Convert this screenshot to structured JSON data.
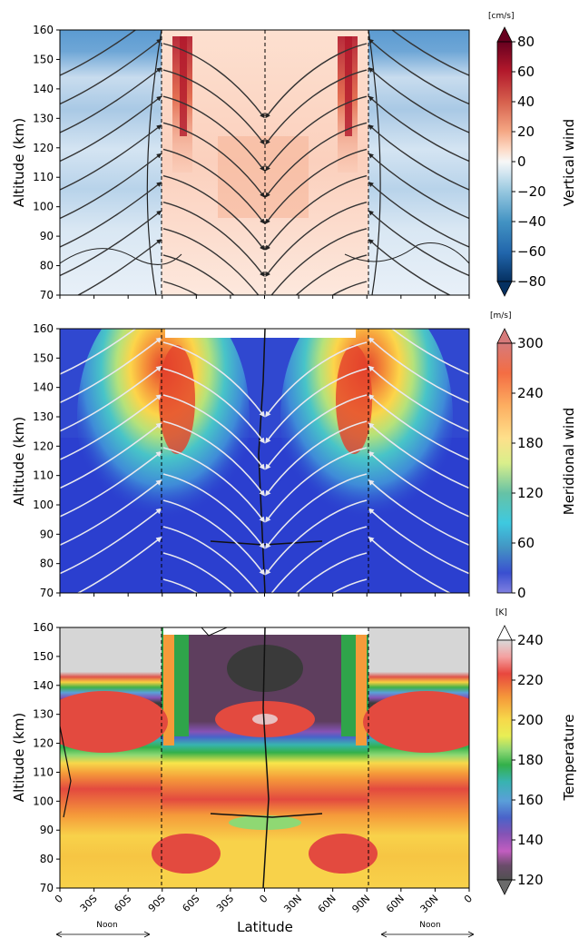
{
  "chart_data": [
    {
      "type": "heatmap",
      "panel": "top",
      "ylabel": "Altitude (km)",
      "ylim": [
        70,
        160
      ],
      "yticks": [
        70,
        80,
        90,
        100,
        110,
        120,
        130,
        140,
        150,
        160
      ],
      "colorbar": {
        "label": "Vertical wind",
        "unit": "[cm/s]",
        "ticks": [
          "80",
          "60",
          "40",
          "20",
          "0",
          "−20",
          "−40",
          "−60",
          "−80"
        ],
        "colors": [
          "#67001f",
          "#b2182b",
          "#d6604d",
          "#f4a582",
          "#fddbc7",
          "#f7f7f7",
          "#d1e5f0",
          "#92c5de",
          "#4393c3",
          "#2166ac",
          "#053061"
        ]
      },
      "colors": {
        "background_south": "#c6dbef",
        "band_high": "#6ea6d6",
        "band_mid": "#d8e6f3",
        "center": "#fde3d6",
        "jet": "#e2583e"
      },
      "streamlines": "black"
    },
    {
      "type": "heatmap",
      "panel": "middle",
      "ylabel": "Altitude (km)",
      "ylim": [
        70,
        160
      ],
      "yticks": [
        70,
        80,
        90,
        100,
        110,
        120,
        130,
        140,
        150,
        160
      ],
      "colorbar": {
        "label": "Meridional wind",
        "unit": "[m/s]",
        "ticks": [
          "300",
          "240",
          "180",
          "120",
          "60",
          "0"
        ],
        "colors": [
          "#b2182b",
          "#f46d43",
          "#fdae61",
          "#fee08b",
          "#d9ef8b",
          "#66c2a5",
          "#3ec9e0",
          "#4393c3",
          "#3a4fd0",
          "#6060d8"
        ]
      },
      "colors": {
        "background": "#2b3fcf",
        "jet_core": "#e3412c"
      },
      "streamlines": "white"
    },
    {
      "type": "heatmap",
      "panel": "bottom",
      "ylabel": "Altitude (km)",
      "xlabel": "Latitude",
      "ylim": [
        70,
        160
      ],
      "yticks": [
        70,
        80,
        90,
        100,
        110,
        120,
        130,
        140,
        150,
        160
      ],
      "xticks": [
        "0",
        "30S",
        "60S",
        "90S",
        "60S",
        "30S",
        "0",
        "30N",
        "60N",
        "90N",
        "60N",
        "30N",
        "0"
      ],
      "x_annotations": [
        "Noon",
        "Noon"
      ],
      "colorbar": {
        "label": "Temperature",
        "unit": "[K]",
        "ticks": [
          "240",
          "220",
          "200",
          "180",
          "160",
          "140",
          "120"
        ],
        "colors": [
          "#d9d9d9",
          "#f4a0a0",
          "#e8473e",
          "#f59a3a",
          "#f7d84a",
          "#e8ee55",
          "#8fd873",
          "#33b04a",
          "#38b3b0",
          "#5a9fd9",
          "#4a63c9",
          "#8553b5",
          "#c25dc0",
          "#6b4c6b",
          "#505050"
        ]
      },
      "colors": {
        "warm": "#e34a3f",
        "yellow": "#f8d24a",
        "green": "#3fb14a",
        "dark_band": "#3d3d3d",
        "purple_center": "#5e3e5e",
        "grey_top": "#d6d6d6"
      }
    }
  ]
}
